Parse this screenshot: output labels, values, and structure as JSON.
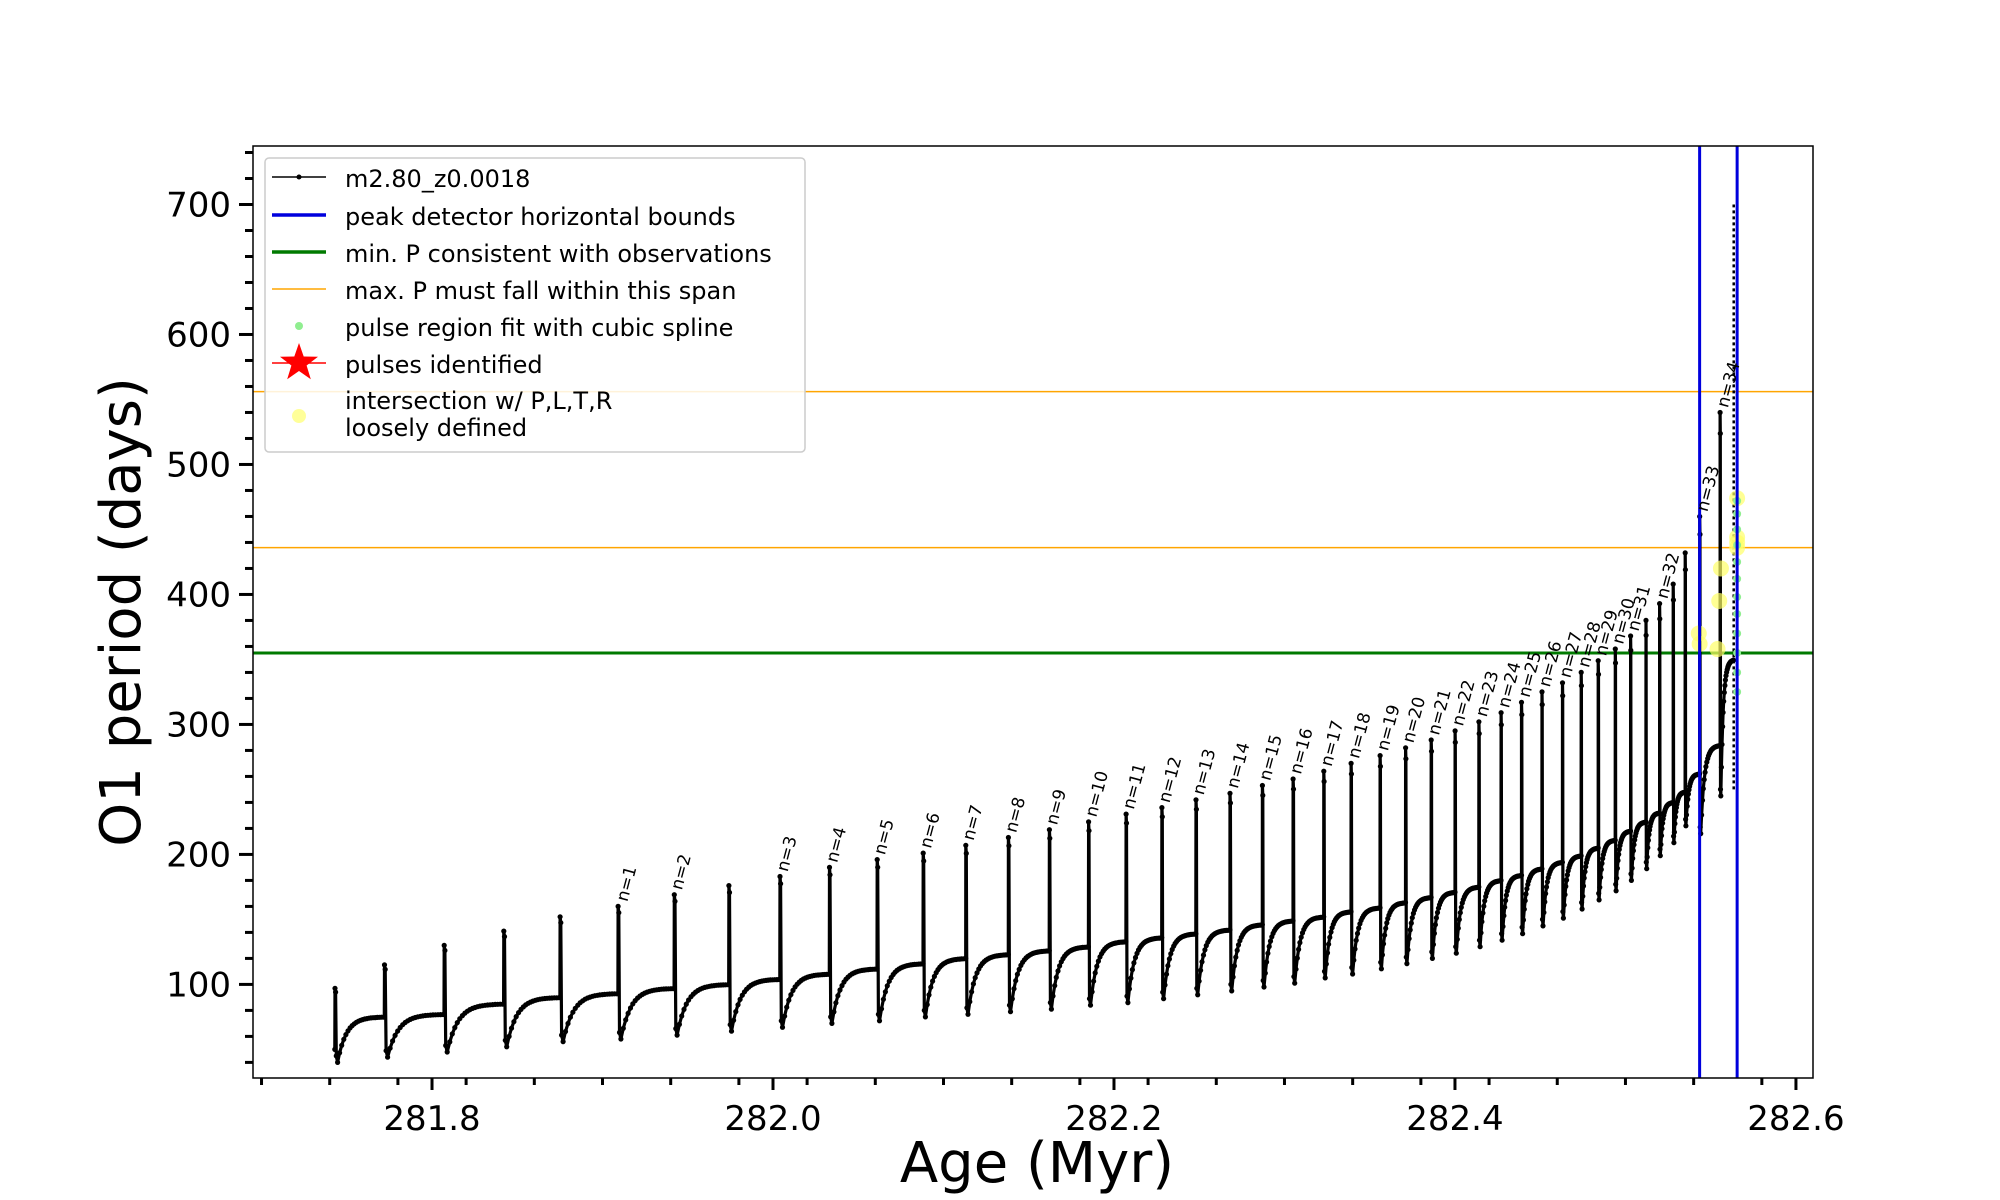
{
  "chart_data": {
    "type": "line",
    "xlabel": "Age (Myr)",
    "ylabel": "O1 period (days)",
    "xlim": [
      281.695,
      282.61
    ],
    "ylim": [
      28,
      745
    ],
    "xticks": [
      281.8,
      282.0,
      282.2,
      282.4,
      282.6
    ],
    "xtick_labels": [
      "281.8",
      "282.0",
      "282.2",
      "282.4",
      "282.6"
    ],
    "yticks": [
      100,
      200,
      300,
      400,
      500,
      600,
      700
    ],
    "ytick_labels": [
      "100",
      "200",
      "300",
      "400",
      "500",
      "600",
      "700"
    ],
    "grid": false,
    "legend_position": "upper-left",
    "legend": [
      {
        "label": "m2.80_z0.0018",
        "kind": "line-marker",
        "color": "#000000"
      },
      {
        "label": "peak detector horizontal bounds",
        "kind": "line",
        "color": "#0000dd"
      },
      {
        "label": "min. P consistent with observations",
        "kind": "line",
        "color": "#007a00"
      },
      {
        "label": "max. P must fall within this span",
        "kind": "thin-line",
        "color": "#ffa500"
      },
      {
        "label": "pulse region fit with cubic spline",
        "kind": "dot",
        "color": "#90ee90"
      },
      {
        "label": "pulses identified",
        "kind": "star",
        "color": "#ff0000"
      },
      {
        "label": "intersection w/ P,L,T,R",
        "label2": "loosely defined",
        "kind": "dot",
        "color": "#ffff99"
      }
    ],
    "series": [
      {
        "name": "m2.80_z0.0018",
        "color": "#000000",
        "cycles": [
          {
            "t0": 281.743,
            "peak": 97,
            "trough": 40,
            "plateau": 75
          },
          {
            "t0": 281.772,
            "peak": 115,
            "trough": 44,
            "plateau": 77
          },
          {
            "t0": 281.807,
            "peak": 130,
            "trough": 48,
            "plateau": 85
          },
          {
            "t0": 281.842,
            "peak": 141,
            "trough": 52,
            "plateau": 90
          },
          {
            "t0": 281.875,
            "peak": 152,
            "trough": 56,
            "plateau": 93
          },
          {
            "t0": 281.909,
            "peak": 160,
            "trough": 58,
            "plateau": 97
          },
          {
            "t0": 281.942,
            "peak": 169,
            "trough": 61,
            "plateau": 100
          },
          {
            "t0": 281.974,
            "peak": 176,
            "trough": 64,
            "plateau": 104
          },
          {
            "t0": 282.004,
            "peak": 183,
            "trough": 67,
            "plateau": 108
          },
          {
            "t0": 282.033,
            "peak": 190,
            "trough": 70,
            "plateau": 112
          },
          {
            "t0": 282.061,
            "peak": 196,
            "trough": 72,
            "plateau": 116
          },
          {
            "t0": 282.088,
            "peak": 201,
            "trough": 75,
            "plateau": 120
          },
          {
            "t0": 282.113,
            "peak": 207,
            "trough": 77,
            "plateau": 123
          },
          {
            "t0": 282.138,
            "peak": 213,
            "trough": 79,
            "plateau": 126
          },
          {
            "t0": 282.162,
            "peak": 219,
            "trough": 81,
            "plateau": 129
          },
          {
            "t0": 282.185,
            "peak": 225,
            "trough": 84,
            "plateau": 133
          },
          {
            "t0": 282.207,
            "peak": 231,
            "trough": 86,
            "plateau": 136
          },
          {
            "t0": 282.228,
            "peak": 236,
            "trough": 89,
            "plateau": 139
          },
          {
            "t0": 282.248,
            "peak": 242,
            "trough": 92,
            "plateau": 142
          },
          {
            "t0": 282.268,
            "peak": 247,
            "trough": 95,
            "plateau": 146
          },
          {
            "t0": 282.287,
            "peak": 253,
            "trough": 98,
            "plateau": 149
          },
          {
            "t0": 282.305,
            "peak": 258,
            "trough": 101,
            "plateau": 152
          },
          {
            "t0": 282.323,
            "peak": 264,
            "trough": 105,
            "plateau": 156
          },
          {
            "t0": 282.339,
            "peak": 270,
            "trough": 108,
            "plateau": 159
          },
          {
            "t0": 282.356,
            "peak": 276,
            "trough": 112,
            "plateau": 163
          },
          {
            "t0": 282.371,
            "peak": 282,
            "trough": 116,
            "plateau": 167
          },
          {
            "t0": 282.386,
            "peak": 288,
            "trough": 120,
            "plateau": 171
          },
          {
            "t0": 282.4,
            "peak": 295,
            "trough": 124,
            "plateau": 175
          },
          {
            "t0": 282.414,
            "peak": 302,
            "trough": 129,
            "plateau": 180
          },
          {
            "t0": 282.427,
            "peak": 309,
            "trough": 134,
            "plateau": 184
          },
          {
            "t0": 282.439,
            "peak": 317,
            "trough": 139,
            "plateau": 189
          },
          {
            "t0": 282.451,
            "peak": 325,
            "trough": 145,
            "plateau": 194
          },
          {
            "t0": 282.463,
            "peak": 332,
            "trough": 151,
            "plateau": 199
          },
          {
            "t0": 282.474,
            "peak": 340,
            "trough": 158,
            "plateau": 205
          },
          {
            "t0": 282.484,
            "peak": 349,
            "trough": 165,
            "plateau": 211
          },
          {
            "t0": 282.494,
            "peak": 358,
            "trough": 172,
            "plateau": 218
          },
          {
            "t0": 282.503,
            "peak": 368,
            "trough": 180,
            "plateau": 225
          },
          {
            "t0": 282.512,
            "peak": 380,
            "trough": 189,
            "plateau": 232
          },
          {
            "t0": 282.52,
            "peak": 393,
            "trough": 199,
            "plateau": 240
          },
          {
            "t0": 282.528,
            "peak": 408,
            "trough": 209,
            "plateau": 248
          },
          {
            "t0": 282.535,
            "peak": 432,
            "trough": 222,
            "plateau": 262
          },
          {
            "t0": 282.5435,
            "peak": 460,
            "trough": 216,
            "plateau": 284
          },
          {
            "t0": 282.5555,
            "peak": 540,
            "trough": 245,
            "plateau": 350
          }
        ],
        "final_spike": {
          "x": 282.5635,
          "bottom": 250,
          "top": 700
        }
      }
    ],
    "pulse_labels": [
      {
        "text": "n=1",
        "x": 281.911,
        "y": 160
      },
      {
        "text": "n=2",
        "x": 281.943,
        "y": 169
      },
      {
        "text": "n=3",
        "x": 282.005,
        "y": 183
      },
      {
        "text": "n=4",
        "x": 282.034,
        "y": 190
      },
      {
        "text": "n=5",
        "x": 282.062,
        "y": 196
      },
      {
        "text": "n=6",
        "x": 282.089,
        "y": 201
      },
      {
        "text": "n=7",
        "x": 282.114,
        "y": 207
      },
      {
        "text": "n=8",
        "x": 282.139,
        "y": 213
      },
      {
        "text": "n=9",
        "x": 282.163,
        "y": 219
      },
      {
        "text": "n=10",
        "x": 282.186,
        "y": 225
      },
      {
        "text": "n=11",
        "x": 282.208,
        "y": 231
      },
      {
        "text": "n=12",
        "x": 282.229,
        "y": 236
      },
      {
        "text": "n=13",
        "x": 282.249,
        "y": 242
      },
      {
        "text": "n=14",
        "x": 282.269,
        "y": 247
      },
      {
        "text": "n=15",
        "x": 282.288,
        "y": 253
      },
      {
        "text": "n=16",
        "x": 282.306,
        "y": 258
      },
      {
        "text": "n=17",
        "x": 282.324,
        "y": 264
      },
      {
        "text": "n=18",
        "x": 282.34,
        "y": 270
      },
      {
        "text": "n=19",
        "x": 282.357,
        "y": 276
      },
      {
        "text": "n=20",
        "x": 282.372,
        "y": 282
      },
      {
        "text": "n=21",
        "x": 282.387,
        "y": 288
      },
      {
        "text": "n=22",
        "x": 282.401,
        "y": 295
      },
      {
        "text": "n=23",
        "x": 282.415,
        "y": 302
      },
      {
        "text": "n=24",
        "x": 282.428,
        "y": 309
      },
      {
        "text": "n=25",
        "x": 282.44,
        "y": 317
      },
      {
        "text": "n=26",
        "x": 282.452,
        "y": 325
      },
      {
        "text": "n=27",
        "x": 282.464,
        "y": 332
      },
      {
        "text": "n=28",
        "x": 282.475,
        "y": 340
      },
      {
        "text": "n=29",
        "x": 282.485,
        "y": 349
      },
      {
        "text": "n=30",
        "x": 282.495,
        "y": 358
      },
      {
        "text": "n=31",
        "x": 282.504,
        "y": 368
      },
      {
        "text": "n=32",
        "x": 282.521,
        "y": 393
      },
      {
        "text": "n=33",
        "x": 282.5445,
        "y": 460
      },
      {
        "text": "n=34",
        "x": 282.5565,
        "y": 540
      }
    ],
    "hlines": [
      {
        "name": "min-period-line",
        "y": 355,
        "color": "#007a00",
        "width": 3
      },
      {
        "name": "max-period-upper-line",
        "y": 556,
        "color": "#ffa500",
        "width": 1.5
      },
      {
        "name": "max-period-lower-line",
        "y": 436,
        "color": "#ffa500",
        "width": 1.5
      }
    ],
    "vlines": [
      {
        "name": "peak-bound-left",
        "x": 282.5435,
        "color": "#0000dd",
        "width": 3
      },
      {
        "name": "peak-bound-right",
        "x": 282.5655,
        "color": "#0000dd",
        "width": 3
      }
    ],
    "spline_points": {
      "color": "#90ee90",
      "x": [
        282.5655,
        282.5655,
        282.5655,
        282.5655,
        282.5655,
        282.5655,
        282.5655,
        282.5655,
        282.5655,
        282.5655,
        282.5655,
        282.5655
      ],
      "y": [
        325,
        340,
        355,
        370,
        385,
        398,
        412,
        425,
        438,
        450,
        462,
        472
      ]
    },
    "intersection_points": {
      "color": "#ffff66",
      "x": [
        282.5655,
        282.5655,
        282.5655,
        282.5655,
        282.543,
        282.5435,
        282.554,
        282.555,
        282.556
      ],
      "y": [
        474,
        440,
        436,
        444,
        370,
        362,
        358,
        395,
        420
      ]
    }
  }
}
